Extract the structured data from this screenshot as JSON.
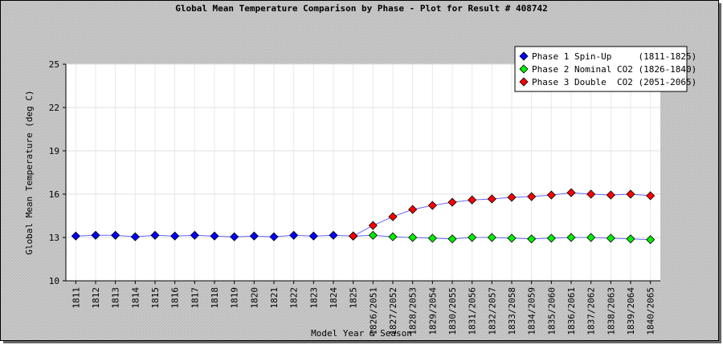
{
  "chart_data": {
    "type": "line",
    "title": "Global Mean Temperature Comparison by Phase - Plot for Result # 408742",
    "x_label": "Model Year & Season",
    "y_label": "Global Mean Temperature (deg C)",
    "categories": [
      "1811",
      "1812",
      "1813",
      "1814",
      "1815",
      "1816",
      "1817",
      "1818",
      "1819",
      "1820",
      "1821",
      "1822",
      "1823",
      "1824",
      "1825",
      "1826/2051",
      "1827/2052",
      "1828/2053",
      "1829/2054",
      "1830/2055",
      "1831/2056",
      "1832/2057",
      "1833/2058",
      "1834/2059",
      "1835/2060",
      "1836/2061",
      "1837/2062",
      "1838/2063",
      "1839/2064",
      "1840/2065"
    ],
    "series": [
      {
        "name": "Phase 1 Spin-Up     (1811-1825)",
        "color": "#0000ff",
        "values": [
          13.1,
          13.15,
          13.15,
          13.05,
          13.15,
          13.1,
          13.15,
          13.1,
          13.05,
          13.1,
          13.05,
          13.15,
          13.1,
          13.15,
          13.1,
          null,
          null,
          null,
          null,
          null,
          null,
          null,
          null,
          null,
          null,
          null,
          null,
          null,
          null,
          null
        ]
      },
      {
        "name": "Phase 2 Nominal CO2 (1826-1840)",
        "color": "#00ee00",
        "values": [
          null,
          null,
          null,
          null,
          null,
          null,
          null,
          null,
          null,
          null,
          null,
          null,
          null,
          null,
          13.1,
          13.15,
          13.05,
          13.0,
          12.95,
          12.9,
          13.0,
          13.0,
          12.95,
          12.9,
          12.95,
          13.0,
          13.0,
          12.95,
          12.9,
          12.85
        ]
      },
      {
        "name": "Phase 3 Double  CO2 (2051-2065)",
        "color": "#ff0000",
        "values": [
          null,
          null,
          null,
          null,
          null,
          null,
          null,
          null,
          null,
          null,
          null,
          null,
          null,
          null,
          13.1,
          13.83,
          14.44,
          14.94,
          15.22,
          15.44,
          15.6,
          15.67,
          15.78,
          15.83,
          15.94,
          16.1,
          16.0,
          15.94,
          16.0,
          15.89
        ]
      }
    ],
    "line_color": "#6666ff",
    "ylim": [
      10,
      25
    ],
    "yticks": [
      10,
      13,
      16,
      19,
      22,
      25
    ],
    "grid": true,
    "legend": "top-right"
  }
}
